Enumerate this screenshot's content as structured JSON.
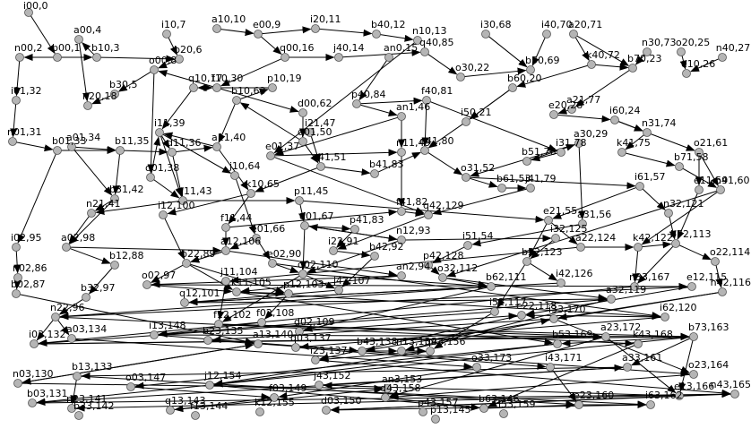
{
  "graph": {
    "node_color": "#b5b5b5",
    "edge_color": "#000000",
    "label_color": "#000000",
    "node_labels": [
      "i00,0",
      "i10,7",
      "a10,10",
      "e00,9",
      "i20,11",
      "b40,12",
      "n10,13",
      "i30,68",
      "i40,70",
      "a20,71",
      "a00,4",
      "b00,1",
      "b10,3",
      "b20,6",
      "q00,16",
      "j40,14",
      "q40,85",
      "o30,22",
      "b50,69",
      "k40,72",
      "n30,73",
      "o20,25",
      "n40,27",
      "n00,2",
      "o00,8",
      "f10,30",
      "p10,19",
      "an0,15",
      "b60,20",
      "b70,23",
      "e10,26",
      "n20,18",
      "b30,5",
      "q10,17",
      "b10,63",
      "d00,62",
      "p40,84",
      "f40,81",
      "a21,77",
      "i01,32",
      "i11,39",
      "i21,47",
      "an1,46",
      "i50,21",
      "e20,28",
      "i60,24",
      "n01,31",
      "a01,34",
      "a11,40",
      "e01,37",
      "q01,50",
      "n11,49",
      "q41,80",
      "i31,78",
      "n31,74",
      "b01,33",
      "b11,35",
      "d11,36",
      "i41,51",
      "b41,83",
      "b51,76",
      "a30,29",
      "k41,75",
      "o21,61",
      "o01,38",
      "b31,42",
      "j10,64",
      "o31,52",
      "b61,53",
      "b71,58",
      "k10,65",
      "q11,43",
      "p11,45",
      "j41,79",
      "i61,57",
      "e11,59",
      "n21,41",
      "f11,44",
      "d01,67",
      "p41,83",
      "f41,82",
      "q42,129",
      "e21,55",
      "n41,60",
      "i02,95",
      "i12,100",
      "e01,66",
      "n12,93",
      "a31,56",
      "n32,121",
      "a02,98",
      "a12,106",
      "i22,91",
      "b42,92",
      "i51,54",
      "i32,125",
      "a22,124",
      "k42,122",
      "b72,113",
      "n02,86",
      "b12,88",
      "b22,89",
      "e02,90",
      "q02,110",
      "an2,94",
      "p42,128",
      "o32,112",
      "b52,123",
      "o22,114",
      "b02,87",
      "o02,97",
      "j11,104",
      "j42,107",
      "b62,111",
      "i42,126",
      "n33,167",
      "e12,115",
      "n42,116",
      "b32,97",
      "k11,105",
      "p12,103",
      "q12,101",
      "i52,117",
      "a32,119",
      "n22,96",
      "f12,102",
      "f02,108",
      "i62,120",
      "a03,134",
      "i13,148",
      "d02,109",
      "e22,118",
      "i33,170",
      "i03,132",
      "b23,135",
      "a13,140",
      "q03,137",
      "b43,138",
      "n13,139",
      "q43,156",
      "a23,172",
      "k43,168",
      "b73,163",
      "b53,169",
      "i43,171",
      "b13,133",
      "i23,137",
      "o33,173",
      "a33,161",
      "o23,164",
      "n03,130",
      "o03,147",
      "j12,154",
      "j43,152",
      "d43,158",
      "e13,166",
      "n43,165",
      "b03,131",
      "f03,149",
      "an3,153",
      "b63,146",
      "e23,160",
      "i63,162",
      "n23,141",
      "q13,143",
      "d03,150",
      "p43,157",
      "i53,159",
      "b33,142",
      "f13,144",
      "k12,155",
      "p13,145"
    ]
  }
}
